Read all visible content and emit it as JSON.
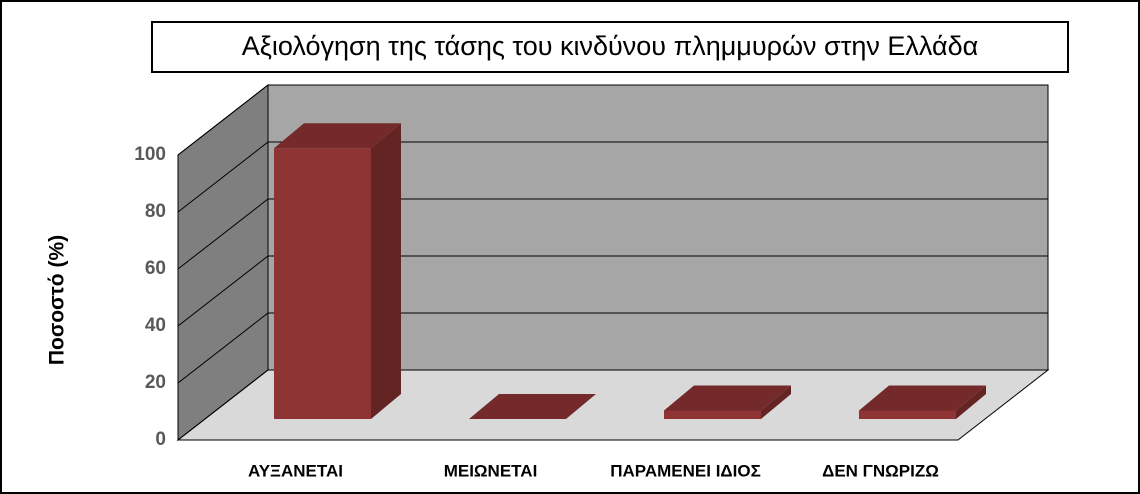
{
  "chart_data": {
    "type": "bar",
    "title": "Αξιολόγηση της τάσης του κινδύνου πλημμυρών στην Ελλάδα",
    "ylabel": "Ποσοστό  (%)",
    "categories": [
      "ΑΥΞΑΝΕΤΑΙ",
      "ΜΕΙΩΝΕΤΑΙ",
      "ΠΑΡΑΜΕΝΕΙ ΙΔΙΟΣ",
      "ΔΕΝ ΓΝΩΡΙΖΩ"
    ],
    "values": [
      95,
      0,
      3,
      3
    ],
    "color": "#8e3434",
    "ylim": [
      0,
      100
    ],
    "yticks": [
      0,
      20,
      40,
      60,
      80,
      100
    ],
    "grid": true
  }
}
